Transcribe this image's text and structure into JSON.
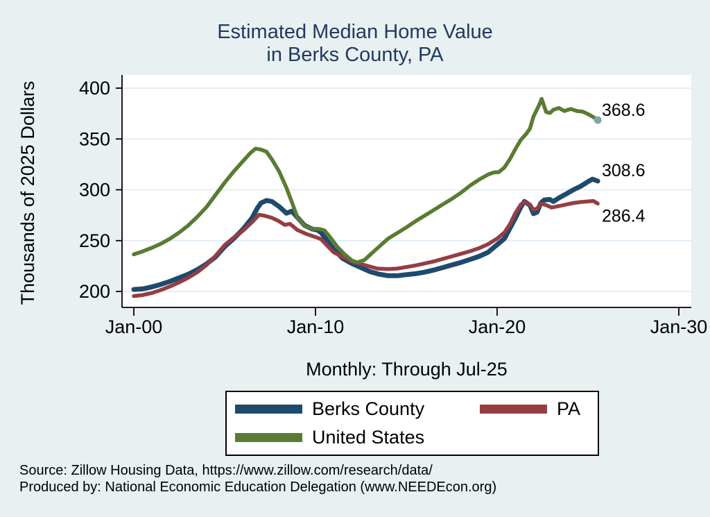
{
  "title": {
    "line1": "Estimated Median Home Value",
    "line2": "in Berks County, PA"
  },
  "subtitle": "Monthly: Through Jul-25",
  "y_axis": {
    "title": "Thousands of 2025 Dollars"
  },
  "x_axis": {
    "tick_labels": [
      "Jan-00",
      "Jan-10",
      "Jan-20",
      "Jan-30"
    ]
  },
  "source": {
    "line1": "Source: Zillow Housing Data, https://www.zillow.com/research/data/",
    "line2": "Produced by: National Economic Education Delegation (www.NEEDEcon.org)"
  },
  "legend": [
    {
      "label": "Berks County",
      "color": "#1e4a6d"
    },
    {
      "label": "PA",
      "color": "#963d44"
    },
    {
      "label": "United States",
      "color": "#5a7b33"
    }
  ],
  "colors": {
    "background": "#e9f0f2",
    "plot_background": "#ffffff",
    "gridline": "#dce9f3",
    "axis": "#000000",
    "title_text": "#1e3a5f",
    "berks_county_line": "#1e4a6d",
    "pa_line": "#963d44",
    "united_states_line": "#5a7b33",
    "us_end_marker": "#7da6ad"
  },
  "chart_data": {
    "type": "line",
    "title": "Estimated Median Home Value in Berks County, PA",
    "subtitle": "Monthly: Through Jul-25",
    "xlabel": "",
    "ylabel": "Thousands of 2025 Dollars",
    "x_ticks": [
      {
        "label": "Jan-00",
        "year": 2000
      },
      {
        "label": "Jan-10",
        "year": 2010
      },
      {
        "label": "Jan-20",
        "year": 2020
      },
      {
        "label": "Jan-30",
        "year": 2030
      }
    ],
    "y_ticks": [
      200,
      250,
      300,
      350,
      400
    ],
    "xlim": [
      1999.35,
      2030.7
    ],
    "ylim": [
      184,
      413
    ],
    "grid": "horizontal",
    "legend_position": "bottom",
    "series": [
      {
        "name": "Berks County",
        "color": "#1e4a6d",
        "end_label": "308.6",
        "points": [
          [
            2000.0,
            202
          ],
          [
            2000.5,
            202.5
          ],
          [
            2001.0,
            204.5
          ],
          [
            2001.5,
            207
          ],
          [
            2002.0,
            210
          ],
          [
            2002.5,
            213.5
          ],
          [
            2003.0,
            217
          ],
          [
            2003.5,
            221.5
          ],
          [
            2004.0,
            227
          ],
          [
            2004.5,
            234
          ],
          [
            2005.0,
            244
          ],
          [
            2005.5,
            252
          ],
          [
            2006.0,
            261
          ],
          [
            2006.5,
            272
          ],
          [
            2006.8,
            282
          ],
          [
            2007.0,
            287
          ],
          [
            2007.3,
            289.5
          ],
          [
            2007.6,
            288.5
          ],
          [
            2008.0,
            283.5
          ],
          [
            2008.4,
            277
          ],
          [
            2008.7,
            279
          ],
          [
            2009.0,
            273
          ],
          [
            2009.4,
            265
          ],
          [
            2009.8,
            261.5
          ],
          [
            2010.1,
            260.5
          ],
          [
            2010.3,
            258
          ],
          [
            2010.6,
            251
          ],
          [
            2011.0,
            241.5
          ],
          [
            2011.5,
            232.5
          ],
          [
            2012.0,
            227.5
          ],
          [
            2012.5,
            223.5
          ],
          [
            2013.0,
            219.5
          ],
          [
            2013.5,
            217
          ],
          [
            2014.0,
            215.5
          ],
          [
            2014.5,
            215.5
          ],
          [
            2015.0,
            216.5
          ],
          [
            2015.5,
            217.5
          ],
          [
            2016.0,
            219
          ],
          [
            2016.5,
            221
          ],
          [
            2017.0,
            223.5
          ],
          [
            2017.5,
            226
          ],
          [
            2018.0,
            228.5
          ],
          [
            2018.5,
            231.5
          ],
          [
            2019.0,
            234.5
          ],
          [
            2019.5,
            238.5
          ],
          [
            2020.0,
            246
          ],
          [
            2020.4,
            252
          ],
          [
            2020.7,
            262
          ],
          [
            2021.0,
            272
          ],
          [
            2021.3,
            283
          ],
          [
            2021.5,
            288.5
          ],
          [
            2021.8,
            285
          ],
          [
            2022.0,
            276.5
          ],
          [
            2022.2,
            278
          ],
          [
            2022.4,
            287
          ],
          [
            2022.6,
            290
          ],
          [
            2022.9,
            290.5
          ],
          [
            2023.1,
            288.5
          ],
          [
            2023.4,
            292
          ],
          [
            2023.8,
            296
          ],
          [
            2024.2,
            300
          ],
          [
            2024.6,
            303.5
          ],
          [
            2025.0,
            308
          ],
          [
            2025.25,
            310.5
          ],
          [
            2025.54,
            308.6
          ]
        ]
      },
      {
        "name": "PA",
        "color": "#963d44",
        "end_label": "286.4",
        "points": [
          [
            2000.0,
            195.5
          ],
          [
            2000.5,
            196.5
          ],
          [
            2001.0,
            198.5
          ],
          [
            2001.5,
            201.5
          ],
          [
            2002.0,
            205
          ],
          [
            2002.5,
            209
          ],
          [
            2003.0,
            213.5
          ],
          [
            2003.5,
            219
          ],
          [
            2004.0,
            226
          ],
          [
            2004.5,
            235
          ],
          [
            2005.0,
            245.5
          ],
          [
            2005.5,
            253
          ],
          [
            2006.0,
            259.5
          ],
          [
            2006.5,
            268
          ],
          [
            2006.9,
            275.5
          ],
          [
            2007.2,
            274.5
          ],
          [
            2007.6,
            272.5
          ],
          [
            2008.0,
            269
          ],
          [
            2008.3,
            265.5
          ],
          [
            2008.6,
            266.5
          ],
          [
            2009.0,
            260.5
          ],
          [
            2009.5,
            256.5
          ],
          [
            2010.0,
            253.5
          ],
          [
            2010.3,
            251.5
          ],
          [
            2010.7,
            244
          ],
          [
            2011.0,
            238.5
          ],
          [
            2011.5,
            234
          ],
          [
            2012.0,
            229.5
          ],
          [
            2012.5,
            227
          ],
          [
            2013.0,
            224.5
          ],
          [
            2013.4,
            222.5
          ],
          [
            2014.0,
            222
          ],
          [
            2014.5,
            222.5
          ],
          [
            2015.0,
            224
          ],
          [
            2015.5,
            225.5
          ],
          [
            2016.0,
            227.5
          ],
          [
            2016.5,
            229.5
          ],
          [
            2017.0,
            232
          ],
          [
            2017.5,
            234.5
          ],
          [
            2018.0,
            237
          ],
          [
            2018.5,
            239.5
          ],
          [
            2019.0,
            242.5
          ],
          [
            2019.5,
            246.5
          ],
          [
            2020.0,
            252
          ],
          [
            2020.4,
            258
          ],
          [
            2020.7,
            266
          ],
          [
            2021.0,
            277
          ],
          [
            2021.3,
            285.5
          ],
          [
            2021.5,
            288
          ],
          [
            2021.8,
            285.5
          ],
          [
            2022.0,
            280.5
          ],
          [
            2022.2,
            281.5
          ],
          [
            2022.4,
            286.5
          ],
          [
            2022.7,
            285
          ],
          [
            2023.0,
            282.5
          ],
          [
            2023.4,
            284
          ],
          [
            2023.8,
            285.5
          ],
          [
            2024.2,
            287
          ],
          [
            2024.6,
            288
          ],
          [
            2025.0,
            288.5
          ],
          [
            2025.3,
            289
          ],
          [
            2025.54,
            286.4
          ]
        ]
      },
      {
        "name": "United States",
        "color": "#5a7b33",
        "end_label": "368.6",
        "end_marker_color": "#7da6ad",
        "points": [
          [
            2000.0,
            236.5
          ],
          [
            2000.5,
            239.5
          ],
          [
            2001.0,
            243
          ],
          [
            2001.5,
            247
          ],
          [
            2002.0,
            252
          ],
          [
            2002.5,
            258
          ],
          [
            2003.0,
            265
          ],
          [
            2003.5,
            273.5
          ],
          [
            2004.0,
            283
          ],
          [
            2004.5,
            295
          ],
          [
            2005.0,
            307
          ],
          [
            2005.5,
            318
          ],
          [
            2006.0,
            328
          ],
          [
            2006.4,
            336
          ],
          [
            2006.7,
            340.5
          ],
          [
            2007.0,
            339.5
          ],
          [
            2007.3,
            337.5
          ],
          [
            2007.6,
            330
          ],
          [
            2008.0,
            318
          ],
          [
            2008.4,
            302
          ],
          [
            2008.7,
            288
          ],
          [
            2009.0,
            273
          ],
          [
            2009.4,
            264.5
          ],
          [
            2009.8,
            261.5
          ],
          [
            2010.2,
            261.5
          ],
          [
            2010.5,
            260
          ],
          [
            2010.8,
            253.5
          ],
          [
            2011.2,
            244
          ],
          [
            2011.6,
            236.5
          ],
          [
            2012.0,
            230.5
          ],
          [
            2012.3,
            228.5
          ],
          [
            2012.7,
            231
          ],
          [
            2013.0,
            236
          ],
          [
            2013.5,
            244
          ],
          [
            2014.0,
            252
          ],
          [
            2014.5,
            257.5
          ],
          [
            2015.0,
            263
          ],
          [
            2015.5,
            269
          ],
          [
            2016.0,
            274.5
          ],
          [
            2016.5,
            280
          ],
          [
            2017.0,
            285.5
          ],
          [
            2017.5,
            291
          ],
          [
            2018.0,
            297
          ],
          [
            2018.5,
            304
          ],
          [
            2019.0,
            310
          ],
          [
            2019.5,
            315
          ],
          [
            2019.8,
            317
          ],
          [
            2020.1,
            317.5
          ],
          [
            2020.4,
            322
          ],
          [
            2020.7,
            330
          ],
          [
            2021.0,
            340
          ],
          [
            2021.3,
            349
          ],
          [
            2021.6,
            355
          ],
          [
            2021.8,
            360
          ],
          [
            2022.0,
            372
          ],
          [
            2022.3,
            383
          ],
          [
            2022.45,
            389.5
          ],
          [
            2022.7,
            376.5
          ],
          [
            2022.9,
            375.5
          ],
          [
            2023.1,
            378.8
          ],
          [
            2023.4,
            380.5
          ],
          [
            2023.7,
            377.5
          ],
          [
            2024.05,
            379.5
          ],
          [
            2024.4,
            377.5
          ],
          [
            2024.7,
            377
          ],
          [
            2025.0,
            374.5
          ],
          [
            2025.3,
            371.5
          ],
          [
            2025.54,
            368.6
          ]
        ]
      }
    ]
  }
}
